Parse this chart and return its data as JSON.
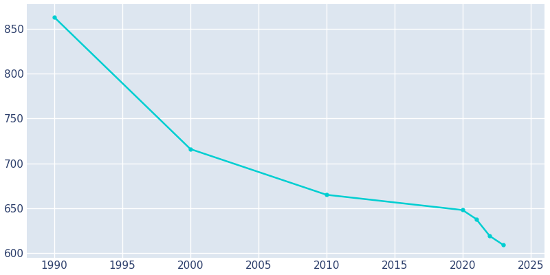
{
  "years": [
    1990,
    2000,
    2010,
    2020,
    2021,
    2022,
    2023
  ],
  "population": [
    863,
    716,
    665,
    648,
    638,
    619,
    609
  ],
  "line_color": "#00CED1",
  "plot_bg_color": "#dde6f0",
  "fig_bg_color": "#ffffff",
  "grid_color": "#ffffff",
  "tick_color": "#2c3e6b",
  "xlim": [
    1988,
    2026
  ],
  "ylim": [
    595,
    878
  ],
  "yticks": [
    600,
    650,
    700,
    750,
    800,
    850
  ],
  "xticks": [
    1990,
    1995,
    2000,
    2005,
    2010,
    2015,
    2020,
    2025
  ],
  "linewidth": 1.8,
  "marker": "o",
  "markersize": 3.5,
  "tick_labelsize": 11
}
